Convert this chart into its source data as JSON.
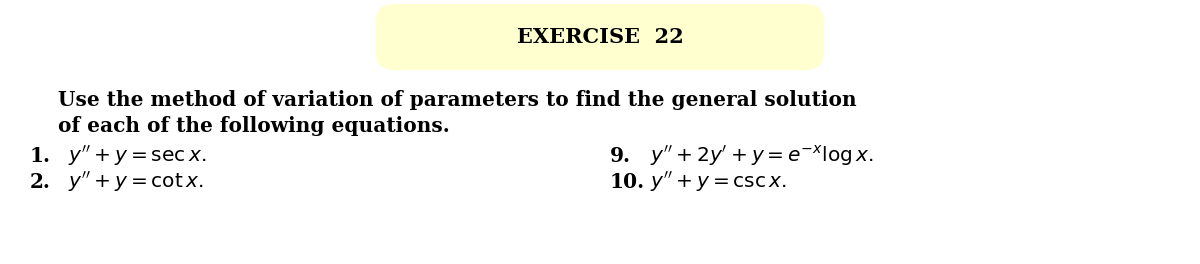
{
  "title": "EXERCISE  22",
  "title_box_color": "#ffffd0",
  "title_fontsize": 15,
  "body_line1": "    Use the method of variation of parameters to find the general solution",
  "body_line2": "    of each of the following equations.",
  "body_fontsize": 14.5,
  "items_left": [
    {
      "num": "1.",
      "eq": "$y'' + y = \\mathrm{sec}\\, x.$"
    },
    {
      "num": "2.",
      "eq": "$y'' + y = \\cot x.$"
    }
  ],
  "items_right": [
    {
      "num": "9.",
      "eq": "$y'' + 2y' + y = e^{-x}\\log x.$"
    },
    {
      "num": "10.",
      "eq": "$y'' + y = \\mathrm{csc}\\, x.$"
    }
  ],
  "items_fontsize": 14.5,
  "background_color": "#ffffff",
  "text_color": "#000000"
}
